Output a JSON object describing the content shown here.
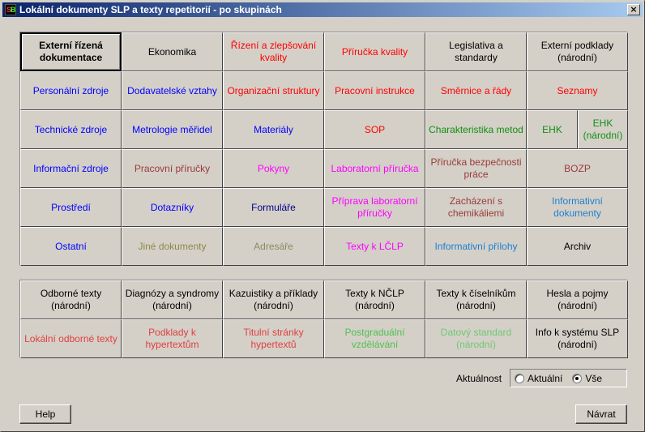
{
  "window": {
    "title": "Lokální dokumenty SLP a texty repetitorií - po skupinách",
    "close_glyph": "×"
  },
  "colors": {
    "black": "#000000",
    "red": "#ff0000",
    "blue": "#0000ff",
    "darkred": "#9a3a3a",
    "green": "#109010",
    "magenta": "#ff00ff",
    "navy": "#00008b",
    "skyblue": "#1e7fd0",
    "olive": "#8a8a4a",
    "grayolive": "#8b8b60",
    "lightred": "#e04040",
    "lightgreen": "#50c050",
    "palegreen": "#70c870"
  },
  "group1": [
    {
      "label": "Externí řízená dokumentace",
      "color": "black",
      "selected": true
    },
    {
      "label": "Ekonomika",
      "color": "black"
    },
    {
      "label": "Řízení a zlepšování kvality",
      "color": "red"
    },
    {
      "label": "Příručka kvality",
      "color": "red"
    },
    {
      "label": "Legislativa a standardy",
      "color": "black"
    },
    {
      "label": "Externí podklady (národní)",
      "color": "black"
    },
    {
      "label": "Personální zdroje",
      "color": "blue"
    },
    {
      "label": "Dodavatelské vztahy",
      "color": "blue"
    },
    {
      "label": "Organizační struktury",
      "color": "red"
    },
    {
      "label": "Pracovní instrukce",
      "color": "red"
    },
    {
      "label": "Směrnice a řády",
      "color": "red"
    },
    {
      "label": "Seznamy",
      "color": "red"
    },
    {
      "label": "Technické zdroje",
      "color": "blue"
    },
    {
      "label": "Metrologie měřidel",
      "color": "blue"
    },
    {
      "label": "Materiály",
      "color": "blue"
    },
    {
      "label": "SOP",
      "color": "red"
    },
    {
      "label": "Charakteristika metod",
      "color": "green"
    },
    {
      "label": "EHK",
      "color": "green"
    },
    {
      "label": "EHK (národní)",
      "color": "green"
    },
    {
      "label": "Informační zdroje",
      "color": "blue"
    },
    {
      "label": "Pracovní příručky",
      "color": "darkred"
    },
    {
      "label": "Pokyny",
      "color": "magenta"
    },
    {
      "label": "Laboratorní příručka",
      "color": "magenta"
    },
    {
      "label": "Příručka bezpečnosti práce",
      "color": "darkred"
    },
    {
      "label": "BOZP",
      "color": "darkred"
    },
    {
      "label": "Prostředí",
      "color": "blue"
    },
    {
      "label": "Dotazníky",
      "color": "blue"
    },
    {
      "label": "Formuláře",
      "color": "navy"
    },
    {
      "label": "Příprava laboratorní příručky",
      "color": "magenta"
    },
    {
      "label": "Zacházení s chemikáliemi",
      "color": "darkred"
    },
    {
      "label": "Informativní dokumenty",
      "color": "skyblue"
    },
    {
      "label": "Ostatní",
      "color": "blue"
    },
    {
      "label": "Jiné dokumenty",
      "color": "olive"
    },
    {
      "label": "Adresáře",
      "color": "grayolive"
    },
    {
      "label": "Texty k LČLP",
      "color": "magenta"
    },
    {
      "label": "Informativní přílohy",
      "color": "skyblue"
    },
    {
      "label": "Archiv",
      "color": "black"
    }
  ],
  "group2": [
    {
      "label": "Odborné texty (národní)",
      "color": "black"
    },
    {
      "label": "Diagnózy a syndromy (národní)",
      "color": "black"
    },
    {
      "label": "Kazuistiky a příklady (národní)",
      "color": "black"
    },
    {
      "label": "Texty k NČLP (národní)",
      "color": "black"
    },
    {
      "label": "Texty k číselníkům (národní)",
      "color": "black"
    },
    {
      "label": "Hesla a pojmy (národní)",
      "color": "black"
    },
    {
      "label": "Lokální odborné texty",
      "color": "lightred"
    },
    {
      "label": "Podklady k hypertextům",
      "color": "lightred"
    },
    {
      "label": "Titulní stránky hypertextů",
      "color": "lightred"
    },
    {
      "label": "Postgraduální vzdělávání",
      "color": "lightgreen"
    },
    {
      "label": "Datový standard (národní)",
      "color": "palegreen"
    },
    {
      "label": "Info k systému SLP (národní)",
      "color": "black"
    }
  ],
  "aktualnost": {
    "label": "Aktuálnost",
    "options": [
      "Aktuální",
      "Vše"
    ],
    "selected": "Vše"
  },
  "buttons": {
    "help": "Help",
    "back": "Návrat"
  }
}
